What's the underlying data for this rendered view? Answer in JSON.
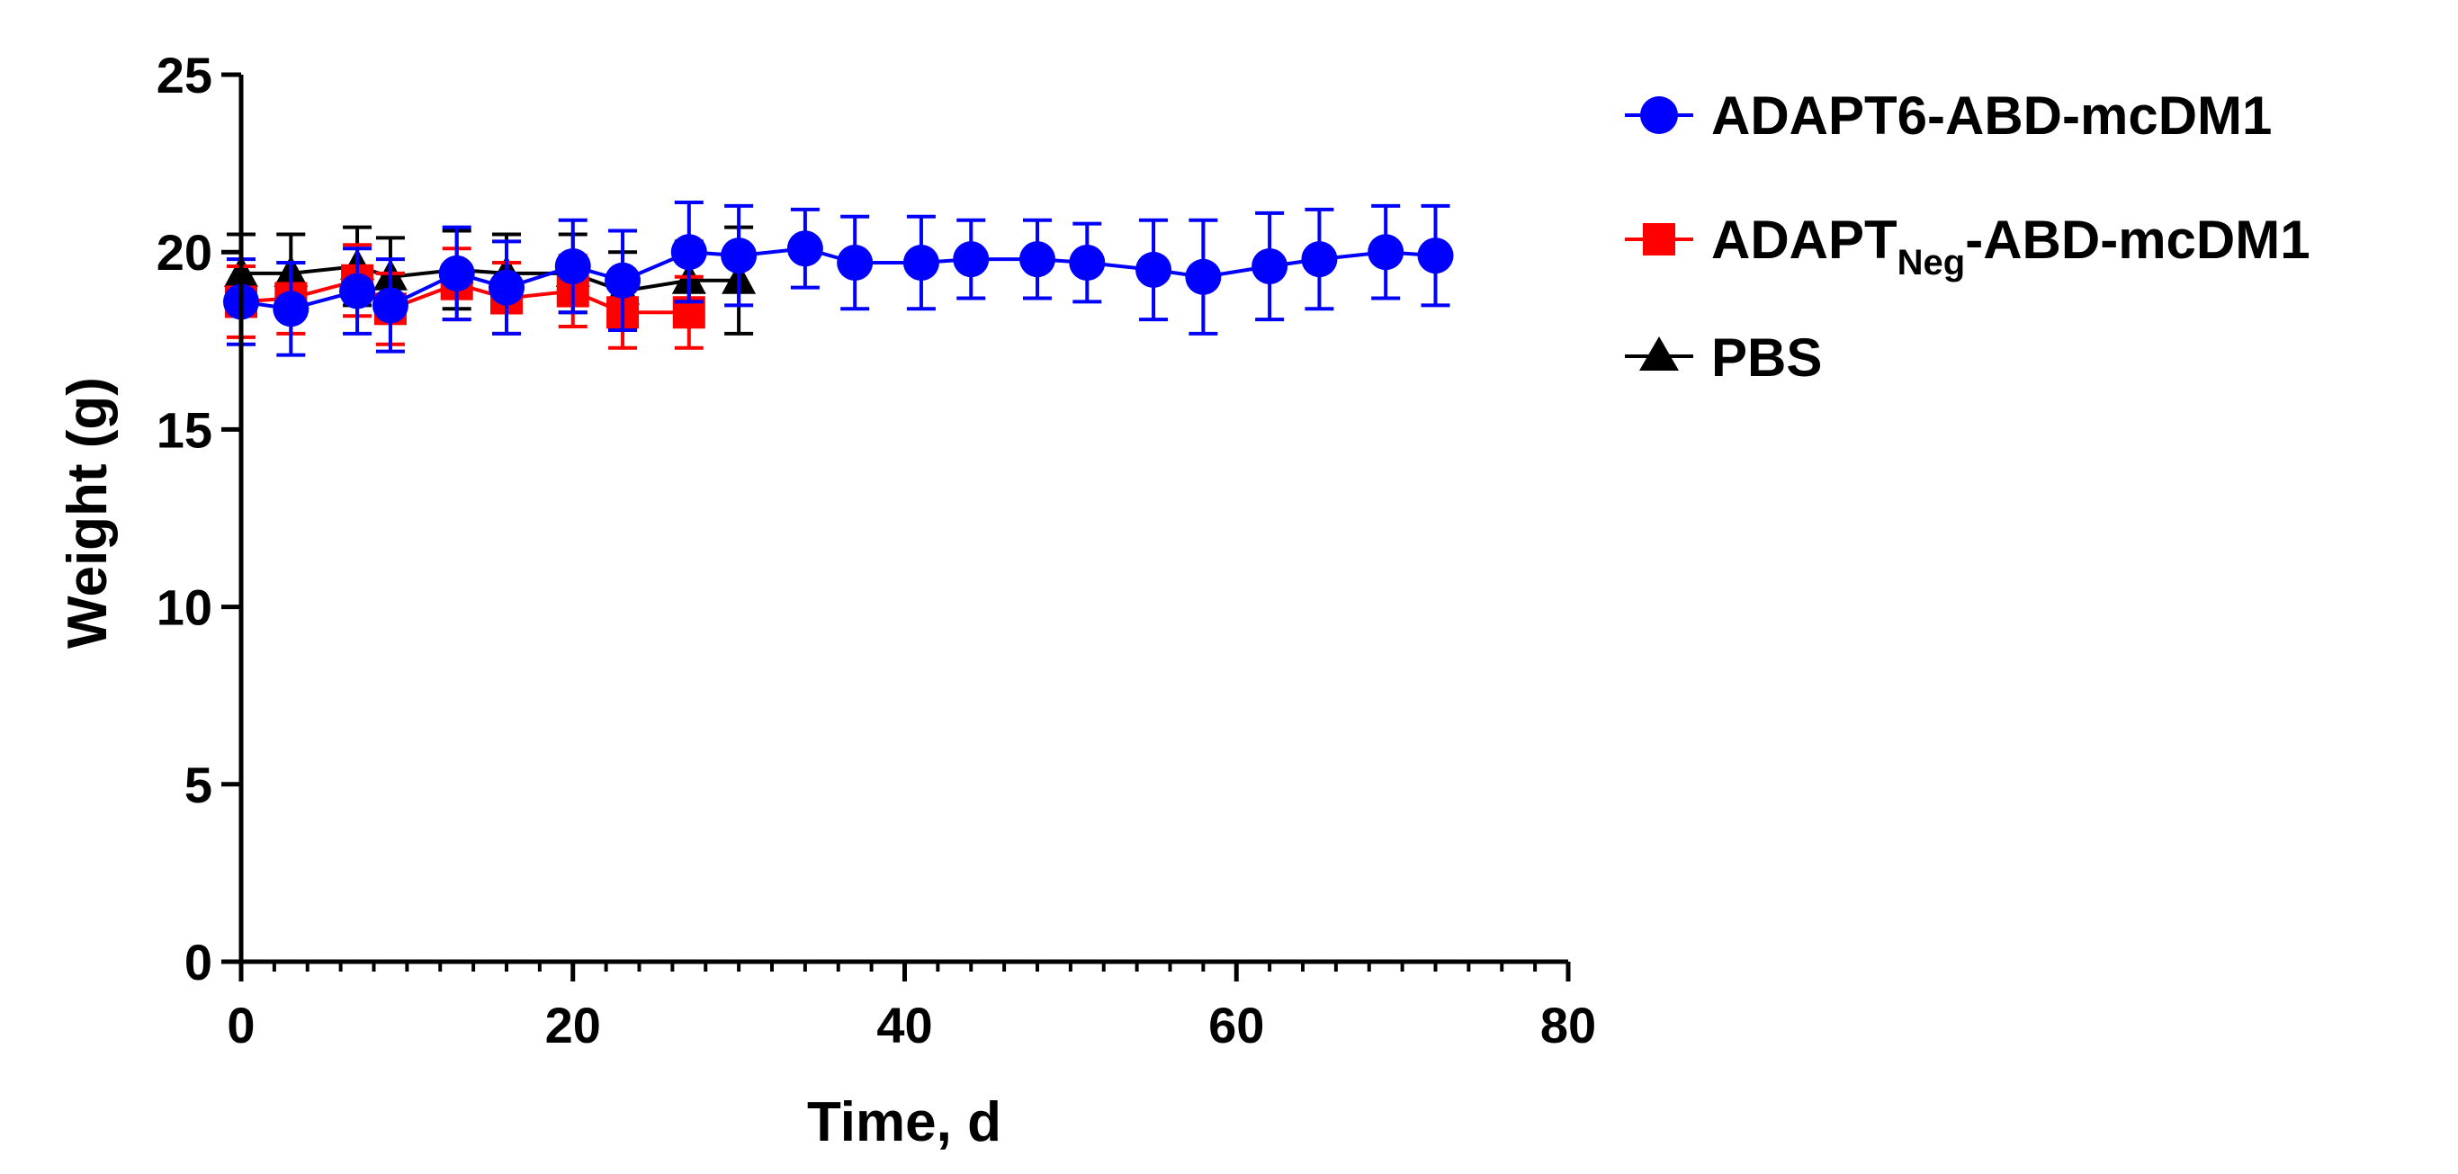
{
  "chart_data": {
    "type": "line",
    "title": "",
    "xlabel": "Time, d",
    "ylabel": "Weight (g)",
    "xlim": [
      0,
      80
    ],
    "ylim": [
      0,
      25
    ],
    "xticks": [
      0,
      20,
      40,
      60,
      80
    ],
    "yticks": [
      0,
      5,
      10,
      15,
      20,
      25
    ],
    "xtick_labels": [
      "0",
      "20",
      "40",
      "60",
      "80"
    ],
    "ytick_labels": [
      "0",
      "5",
      "10",
      "15",
      "20",
      "25"
    ],
    "grid": false,
    "legend_position": "right",
    "series": [
      {
        "name": "ADAPT6-ABD-mcDM1",
        "color": "#0000ff",
        "marker": "circle",
        "x": [
          0,
          3,
          7,
          9,
          13,
          16,
          20,
          23,
          27,
          30,
          34,
          37,
          41,
          44,
          48,
          51,
          55,
          58,
          62,
          65,
          69,
          72
        ],
        "y": [
          18.6,
          18.4,
          18.9,
          18.5,
          19.4,
          19.0,
          19.6,
          19.2,
          20.0,
          19.9,
          20.1,
          19.7,
          19.7,
          19.8,
          19.8,
          19.7,
          19.5,
          19.3,
          19.6,
          19.8,
          20.0,
          19.9
        ],
        "err": [
          1.2,
          1.3,
          1.2,
          1.3,
          1.3,
          1.3,
          1.3,
          1.4,
          1.4,
          1.4,
          1.1,
          1.3,
          1.3,
          1.1,
          1.1,
          1.1,
          1.4,
          1.6,
          1.5,
          1.4,
          1.3,
          1.4
        ]
      },
      {
        "name": "ADAPTNeg-ABD-mcDM1",
        "name_parts": {
          "main": "ADAPT",
          "sub": "Neg",
          "rest": "-ABD-mcDM1"
        },
        "color": "#ff0000",
        "marker": "square",
        "x": [
          0,
          3,
          7,
          9,
          13,
          16,
          20,
          23,
          27
        ],
        "y": [
          18.6,
          18.7,
          19.2,
          18.4,
          19.1,
          18.7,
          18.9,
          18.3,
          18.3
        ],
        "err": [
          1.0,
          1.0,
          1.0,
          1.0,
          1.0,
          1.0,
          1.0,
          1.0,
          1.0
        ]
      },
      {
        "name": "PBS",
        "color": "#000000",
        "marker": "triangle",
        "x": [
          0,
          3,
          7,
          9,
          13,
          16,
          20,
          23,
          27,
          30
        ],
        "y": [
          19.4,
          19.4,
          19.6,
          19.3,
          19.5,
          19.4,
          19.4,
          18.9,
          19.2,
          19.2
        ],
        "err": [
          1.1,
          1.1,
          1.1,
          1.1,
          1.1,
          1.1,
          1.1,
          1.1,
          1.1,
          1.5
        ]
      }
    ]
  }
}
